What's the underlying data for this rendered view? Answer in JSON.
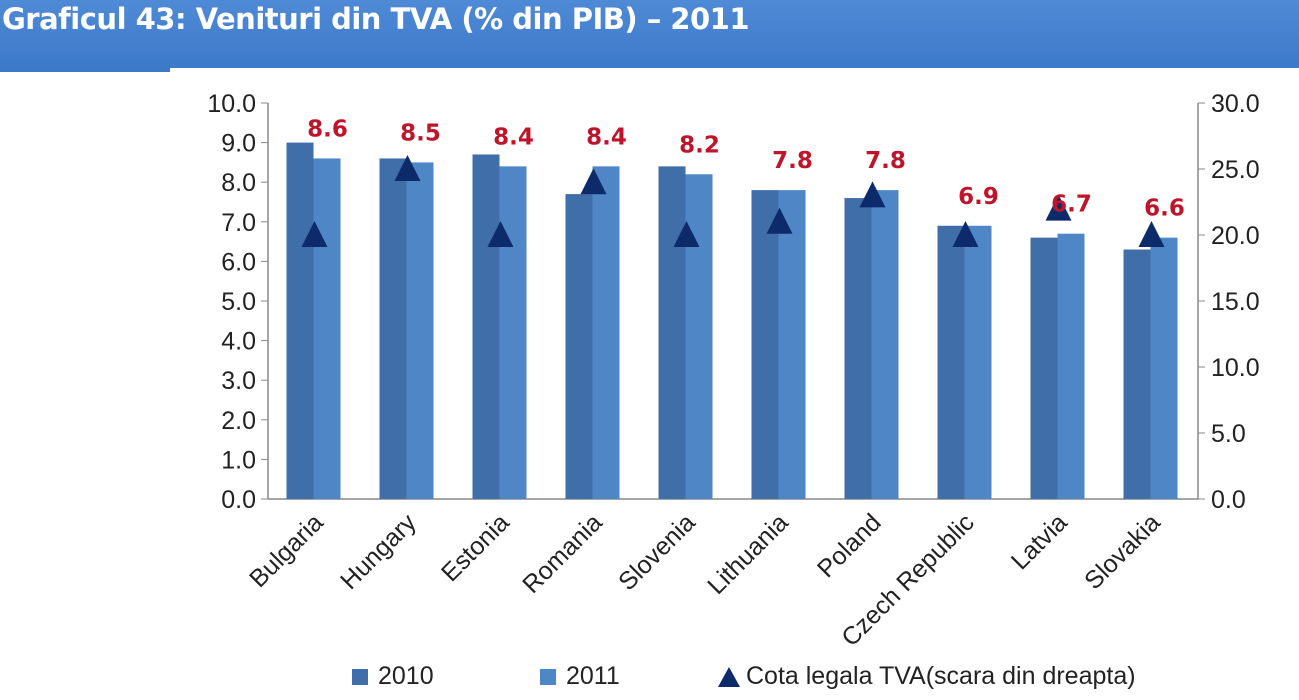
{
  "chart_data": {
    "type": "bar",
    "title": "Graficul 43: Venituri din TVA (% din PIB) – 2011",
    "categories": [
      "Bulgaria",
      "Hungary",
      "Estonia",
      "Romania",
      "Slovenia",
      "Lithuania",
      "Poland",
      "Czech Republic",
      "Latvia",
      "Slovakia"
    ],
    "series": [
      {
        "name": "2010",
        "axis": "left",
        "color": "#3f6ea8",
        "values": [
          9.0,
          8.6,
          8.7,
          7.7,
          8.4,
          7.8,
          7.6,
          6.9,
          6.6,
          6.3
        ]
      },
      {
        "name": "2011",
        "axis": "left",
        "color": "#4f86c6",
        "values": [
          8.6,
          8.5,
          8.4,
          8.4,
          8.2,
          7.8,
          7.8,
          6.9,
          6.7,
          6.6
        ],
        "data_labels": [
          "8.6",
          "8.5",
          "8.4",
          "8.4",
          "8.2",
          "7.8",
          "7.8",
          "6.9",
          "6.7",
          "6.6"
        ],
        "label_color": "#c0142a"
      },
      {
        "name": "Cota legala TVA(scara din dreapta)",
        "axis": "right",
        "type": "marker-triangle",
        "color": "#0d2b6b",
        "values": [
          20,
          25,
          20,
          24,
          20,
          21,
          23,
          20,
          22,
          20
        ]
      }
    ],
    "ylim": [
      0,
      10
    ],
    "y2lim": [
      0,
      30
    ],
    "yticks": [
      "0.0",
      "1.0",
      "2.0",
      "3.0",
      "4.0",
      "5.0",
      "6.0",
      "7.0",
      "8.0",
      "9.0",
      "10.0"
    ],
    "y2ticks": [
      "0.0",
      "5.0",
      "10.0",
      "15.0",
      "20.0",
      "25.0",
      "30.0"
    ],
    "legend_position": "bottom"
  }
}
